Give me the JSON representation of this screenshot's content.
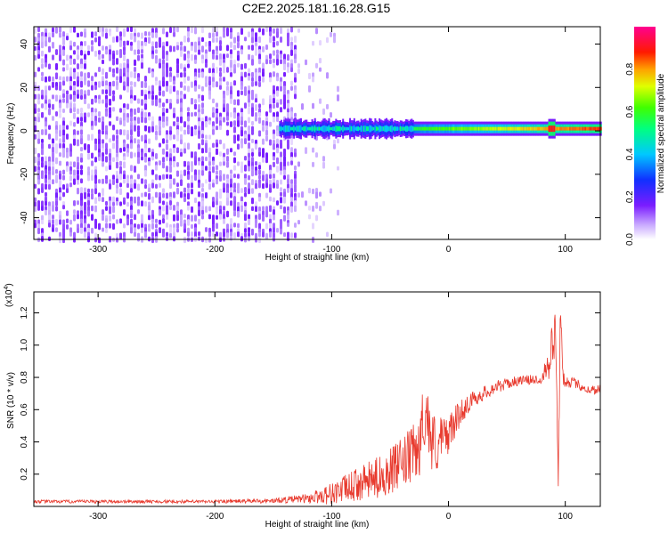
{
  "title": "C2E2.2025.181.16.28.G15",
  "colors": {
    "snr_line": "#e83a2e",
    "noise": "#8a4dff",
    "axis": "#000000"
  },
  "chart_data": [
    {
      "id": "spectrogram",
      "type": "heatmap",
      "xlabel": "Height of straight line (km)",
      "ylabel": "Frequency (Hz)",
      "xlim": [
        -355,
        130
      ],
      "ylim": [
        -50,
        48
      ],
      "xticks": [
        -300,
        -200,
        -100,
        0,
        100
      ],
      "yticks": [
        -40,
        -20,
        0,
        20,
        40
      ],
      "colorbar": {
        "label": "Normalized spectral amplitude",
        "range": [
          0.0,
          1.0
        ],
        "ticks": [
          "0.0",
          "0.2",
          "0.4",
          "0.6",
          "0.8"
        ],
        "colormap": "rainbow (white/purple at 0, blue, cyan, green, yellow, red, magenta at 1)"
      },
      "features": {
        "noise_region_x": [
          -355,
          -130
        ],
        "sparse_noise_region_x": [
          -130,
          -95
        ],
        "signal_band_center_hz": 1,
        "signal_band_start_x": -145,
        "strong_signal_x": [
          -30,
          130
        ],
        "peak_x": 88
      }
    },
    {
      "id": "snr",
      "type": "line",
      "xlabel": "Height of straight line (km)",
      "ylabel": "SNR (10 * v/v)",
      "yscale_label": "(x10^4)",
      "xlim": [
        -355,
        130
      ],
      "ylim": [
        0,
        1.33
      ],
      "xticks": [
        -300,
        -200,
        -100,
        0,
        100
      ],
      "yticks": [
        "0.2",
        "0.4",
        "0.6",
        "0.8",
        "1.0",
        "1.2"
      ],
      "series": [
        {
          "color": "#e83a2e",
          "x": [
            -355,
            -300,
            -250,
            -200,
            -150,
            -120,
            -100,
            -80,
            -60,
            -40,
            -25,
            -20,
            -15,
            -10,
            0,
            10,
            20,
            40,
            60,
            80,
            92,
            94,
            96,
            98,
            100,
            110,
            120,
            130
          ],
          "y": [
            0.03,
            0.03,
            0.03,
            0.03,
            0.035,
            0.05,
            0.08,
            0.13,
            0.18,
            0.26,
            0.36,
            0.62,
            0.42,
            0.38,
            0.45,
            0.58,
            0.66,
            0.74,
            0.78,
            0.79,
            1.05,
            0.2,
            1.25,
            0.8,
            0.78,
            0.76,
            0.72,
            0.73
          ],
          "noise_amp": [
            0.01,
            0.01,
            0.01,
            0.01,
            0.015,
            0.03,
            0.07,
            0.1,
            0.13,
            0.16,
            0.2,
            0.22,
            0.2,
            0.18,
            0.12,
            0.08,
            0.05,
            0.04,
            0.03,
            0.03,
            0.25,
            0.1,
            0.1,
            0.05,
            0.04,
            0.03,
            0.03,
            0.03
          ]
        }
      ]
    }
  ]
}
